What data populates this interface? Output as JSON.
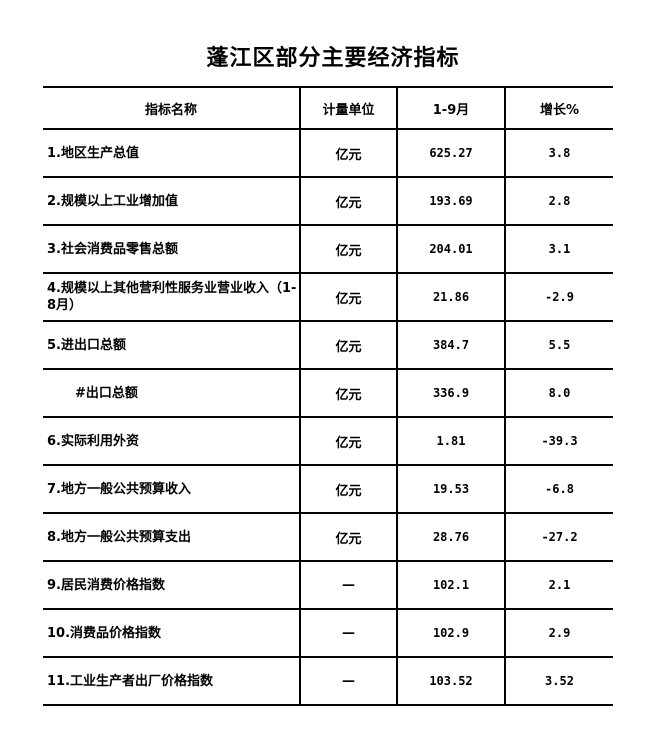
{
  "title": "蓬江区部分主要经济指标",
  "headers": [
    "指标名称",
    "计量单位",
    "1-9月",
    "增长%"
  ],
  "rows": [
    {
      "name": "1.地区生产总值",
      "unit": "亿元",
      "value": "625.27",
      "growth": "3.8"
    },
    {
      "name": "2.规模以上工业增加值",
      "unit": "亿元",
      "value": "193.69",
      "growth": "2.8"
    },
    {
      "name": "3.社会消费品零售总额",
      "unit": "亿元",
      "value": "204.01",
      "growth": "3.1"
    },
    {
      "name": "4.规模以上其他营利性服务业营业收入（1-8月）",
      "unit": "亿元",
      "value": "21.86",
      "growth": "-2.9"
    },
    {
      "name": "5.进出口总额",
      "unit": "亿元",
      "value": "384.7",
      "growth": "5.5"
    },
    {
      "name": "#出口总额",
      "unit": "亿元",
      "value": "336.9",
      "growth": "8.0"
    },
    {
      "name": "6.实际利用外资",
      "unit": "亿元",
      "value": "1.81",
      "growth": "-39.3"
    },
    {
      "name": "7.地方一般公共预算收入",
      "unit": "亿元",
      "value": "19.53",
      "growth": "-6.8"
    },
    {
      "name": "8.地方一般公共预算支出",
      "unit": "亿元",
      "value": "28.76",
      "growth": "-27.2"
    },
    {
      "name": "9.居民消费价格指数",
      "unit": "—",
      "value": "102.1",
      "growth": "2.1"
    },
    {
      "name": "10.消费品价格指数",
      "unit": "—",
      "value": "102.9",
      "growth": "2.9"
    },
    {
      "name": "11.工业生产者出厂价格指数",
      "unit": "—",
      "value": "103.52",
      "growth": "3.52"
    }
  ]
}
